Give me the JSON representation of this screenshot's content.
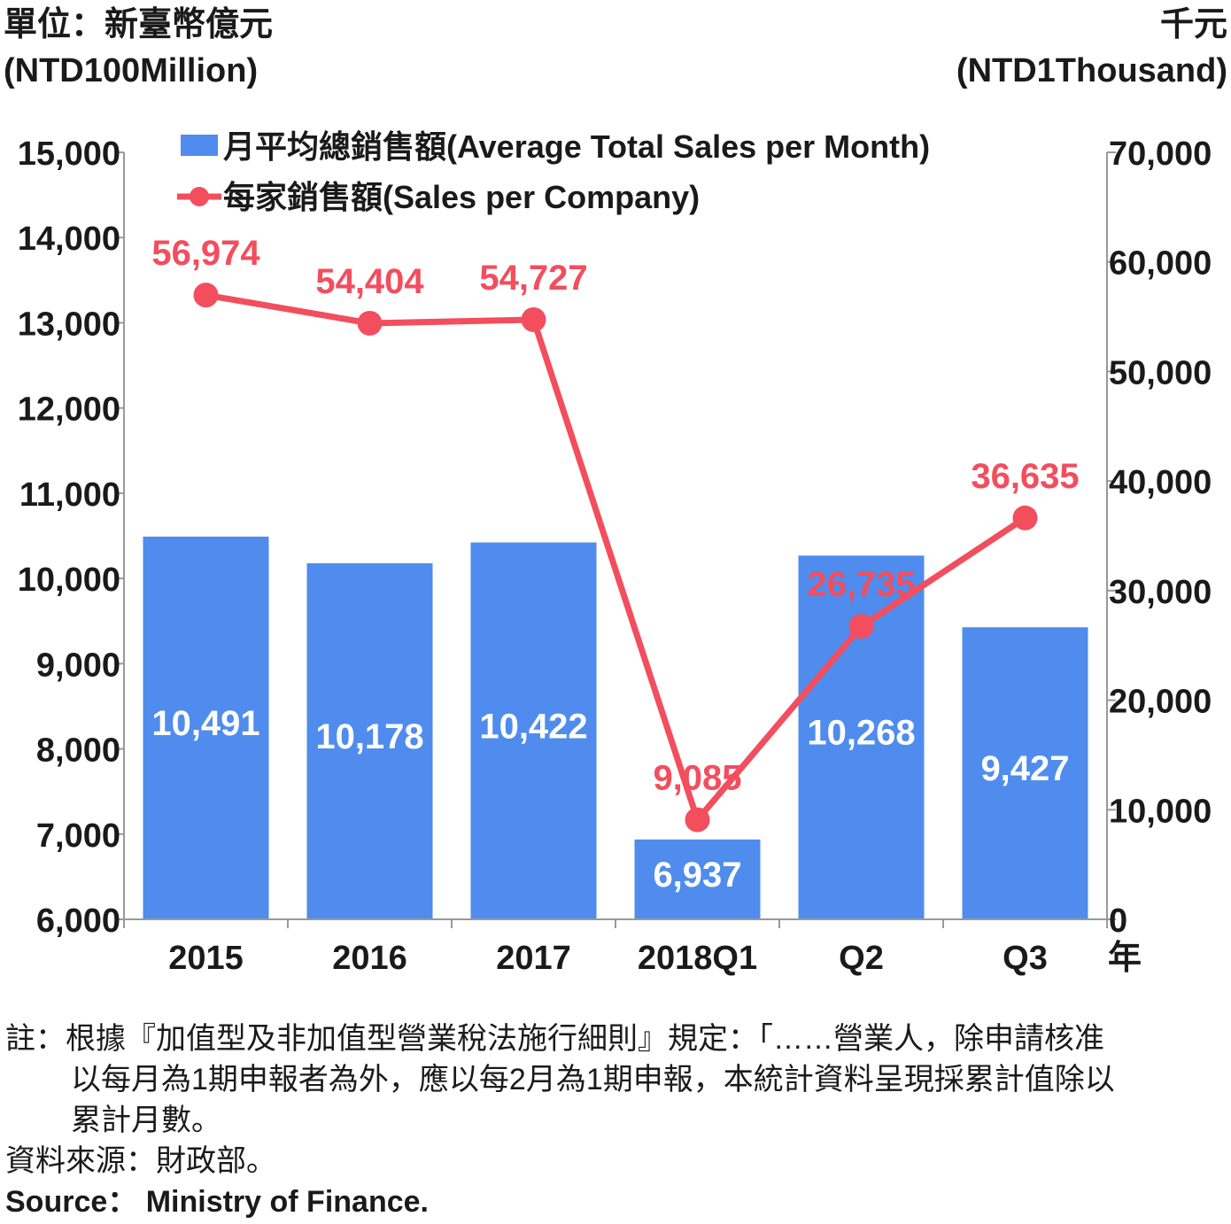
{
  "units": {
    "left_cn": "單位：新臺幣億元",
    "left_en": "(NTD100Million)",
    "right_cn": "千元",
    "right_en": "(NTD1Thousand)"
  },
  "chart_data": {
    "type": "bar",
    "categories": [
      "2015",
      "2016",
      "2017",
      "2018Q1",
      "Q2",
      "Q3"
    ],
    "x_suffix": "年",
    "series": [
      {
        "name": "月平均總銷售額(Average Total Sales per Month)",
        "type": "bar",
        "axis": "left",
        "color": "#4f8ced",
        "values": [
          10491,
          10178,
          10422,
          6937,
          10268,
          9427
        ],
        "labels": [
          "10,491",
          "10,178",
          "10,422",
          "6,937",
          "10,268",
          "9,427"
        ]
      },
      {
        "name": "每家銷售額(Sales per Company)",
        "type": "line",
        "axis": "right",
        "color": "#f24e5e",
        "values": [
          56974,
          54404,
          54727,
          9085,
          26735,
          36635
        ],
        "labels": [
          "56,974",
          "54,404",
          "54,727",
          "9,085",
          "26,735",
          "36,635"
        ]
      }
    ],
    "y_left": {
      "ylim": [
        6000,
        15000
      ],
      "ticks": [
        6000,
        7000,
        8000,
        9000,
        10000,
        11000,
        12000,
        13000,
        14000,
        15000
      ],
      "tick_labels": [
        "6,000",
        "7,000",
        "8,000",
        "9,000",
        "10,000",
        "11,000",
        "12,000",
        "13,000",
        "14,000",
        "15,000"
      ]
    },
    "y_right": {
      "ylim": [
        0,
        70000
      ],
      "ticks": [
        0,
        10000,
        20000,
        30000,
        40000,
        50000,
        60000,
        70000
      ],
      "tick_labels": [
        "0",
        "10,000",
        "20,000",
        "30,000",
        "40,000",
        "50,000",
        "60,000",
        "70,000"
      ]
    },
    "grid": false,
    "legend_position": "top"
  },
  "notes": {
    "line1": "註：根據『加值型及非加值型營業稅法施行細則』規定：「……營業人，除申請核准",
    "line2": "以每月為1期申報者為外，應以每2月為1期申報，本統計資料呈現採累計值除以",
    "line3": "累計月數。",
    "source_cn": "資料來源：財政部。",
    "source_en": "Source： Ministry of Finance."
  }
}
